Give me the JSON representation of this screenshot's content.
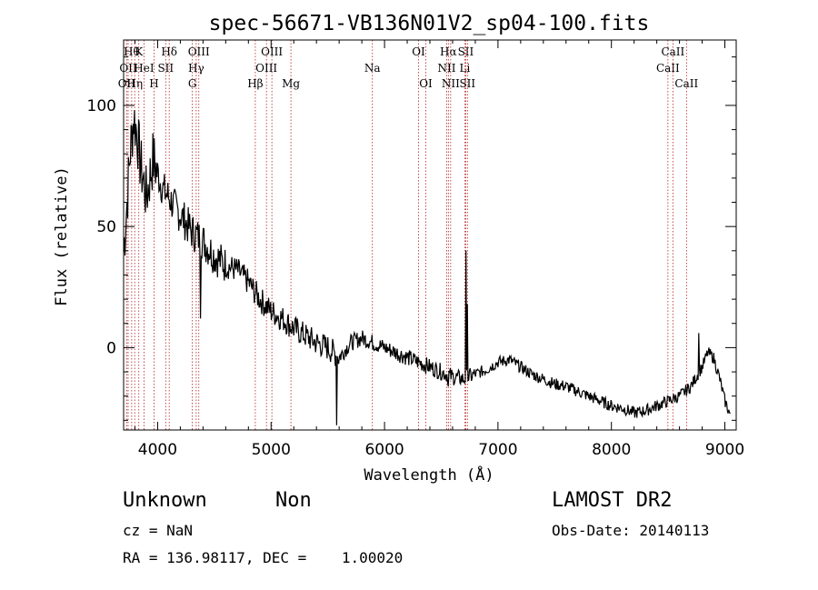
{
  "chart_data": {
    "type": "line",
    "title": "spec-56671-VB136N01V2_sp04-100.fits",
    "xlabel": "Wavelength (Å)",
    "ylabel": "Flux (relative)",
    "xlim": [
      3700,
      9100
    ],
    "ylim": [
      -34,
      127
    ],
    "xticks": [
      4000,
      5000,
      6000,
      7000,
      8000,
      9000
    ],
    "yticks": [
      0,
      50,
      100
    ],
    "xticklabels": [
      "4000",
      "5000",
      "6000",
      "7000",
      "8000",
      "9000"
    ],
    "yticklabels": [
      "0",
      "50",
      "100"
    ],
    "line_color": "#000000",
    "marker_color": "#b22222",
    "spectrum_anchors": [
      [
        3700,
        40
      ],
      [
        3730,
        60
      ],
      [
        3760,
        82
      ],
      [
        3790,
        95
      ],
      [
        3820,
        88
      ],
      [
        3850,
        75
      ],
      [
        3880,
        68
      ],
      [
        3900,
        62
      ],
      [
        3930,
        70
      ],
      [
        3960,
        78
      ],
      [
        4000,
        72
      ],
      [
        4050,
        65
      ],
      [
        4100,
        62
      ],
      [
        4150,
        58
      ],
      [
        4200,
        55
      ],
      [
        4300,
        48
      ],
      [
        4400,
        44
      ],
      [
        4500,
        38
      ],
      [
        4600,
        34
      ],
      [
        4700,
        32
      ],
      [
        4800,
        27
      ],
      [
        4900,
        20
      ],
      [
        5000,
        15
      ],
      [
        5100,
        12
      ],
      [
        5200,
        8
      ],
      [
        5300,
        5
      ],
      [
        5400,
        2
      ],
      [
        5500,
        0
      ],
      [
        5600,
        -4
      ],
      [
        5700,
        2
      ],
      [
        5800,
        4
      ],
      [
        5900,
        2
      ],
      [
        6000,
        0
      ],
      [
        6100,
        -2
      ],
      [
        6200,
        -4
      ],
      [
        6300,
        -6
      ],
      [
        6400,
        -8
      ],
      [
        6500,
        -10
      ],
      [
        6600,
        -12
      ],
      [
        6700,
        -13
      ],
      [
        6800,
        -11
      ],
      [
        6900,
        -9
      ],
      [
        7000,
        -6
      ],
      [
        7100,
        -5
      ],
      [
        7200,
        -8
      ],
      [
        7300,
        -11
      ],
      [
        7400,
        -13
      ],
      [
        7500,
        -15
      ],
      [
        7600,
        -16
      ],
      [
        7700,
        -18
      ],
      [
        7800,
        -20
      ],
      [
        7900,
        -22
      ],
      [
        8000,
        -24
      ],
      [
        8100,
        -25
      ],
      [
        8200,
        -27
      ],
      [
        8300,
        -26
      ],
      [
        8400,
        -24
      ],
      [
        8500,
        -22
      ],
      [
        8600,
        -20
      ],
      [
        8700,
        -16
      ],
      [
        8800,
        -8
      ],
      [
        8850,
        -2
      ],
      [
        8900,
        -4
      ],
      [
        8950,
        -12
      ],
      [
        9000,
        -22
      ],
      [
        9050,
        -28
      ]
    ],
    "spectrum_spikes": [
      [
        4380,
        12
      ],
      [
        5580,
        -32
      ],
      [
        6563,
        -16
      ],
      [
        6717,
        40
      ],
      [
        6731,
        18
      ],
      [
        8770,
        6
      ]
    ],
    "lines": [
      {
        "label": "OII",
        "wave": 3727,
        "row": 2
      },
      {
        "label": "OII",
        "wave": 3740,
        "row": 1
      },
      {
        "label": "Hθ",
        "wave": 3771,
        "row": 0
      },
      {
        "label": "Hη",
        "wave": 3798,
        "row": 2
      },
      {
        "label": "K",
        "wave": 3834,
        "row": 0
      },
      {
        "label": "HeI",
        "wave": 3880,
        "row": 1
      },
      {
        "label": "H",
        "wave": 3968,
        "row": 2
      },
      {
        "label": "SII",
        "wave": 4071,
        "row": 1
      },
      {
        "label": "Hδ",
        "wave": 4102,
        "row": 0
      },
      {
        "label": "G",
        "wave": 4306,
        "row": 2
      },
      {
        "label": "Hγ",
        "wave": 4340,
        "row": 1
      },
      {
        "label": "OIII",
        "wave": 4363,
        "row": 0
      },
      {
        "label": "Hβ",
        "wave": 4861,
        "row": 2
      },
      {
        "label": "OIII",
        "wave": 4959,
        "row": 1
      },
      {
        "label": "OIII",
        "wave": 5007,
        "row": 0
      },
      {
        "label": "Mg",
        "wave": 5175,
        "row": 2
      },
      {
        "label": "Na",
        "wave": 5893,
        "row": 1
      },
      {
        "label": "OI",
        "wave": 6300,
        "row": 0
      },
      {
        "label": "OI",
        "wave": 6364,
        "row": 2
      },
      {
        "label": "NII",
        "wave": 6548,
        "row": 1
      },
      {
        "label": "Hα",
        "wave": 6563,
        "row": 0
      },
      {
        "label": "NII",
        "wave": 6583,
        "row": 2
      },
      {
        "label": "SII",
        "wave": 6716,
        "row": 0
      },
      {
        "label": "Li",
        "wave": 6708,
        "row": 1
      },
      {
        "label": "SII",
        "wave": 6731,
        "row": 2
      },
      {
        "label": "CaII",
        "wave": 8498,
        "row": 1
      },
      {
        "label": "CaII",
        "wave": 8542,
        "row": 0
      },
      {
        "label": "CaII",
        "wave": 8662,
        "row": 2
      }
    ]
  },
  "info": {
    "class_label": "Unknown",
    "subclass_label": "Non",
    "survey": "LAMOST DR2",
    "cz": "cz = NaN",
    "obs_date": "Obs-Date: 20140113",
    "coords": "RA = 136.98117, DEC =    1.00020"
  }
}
